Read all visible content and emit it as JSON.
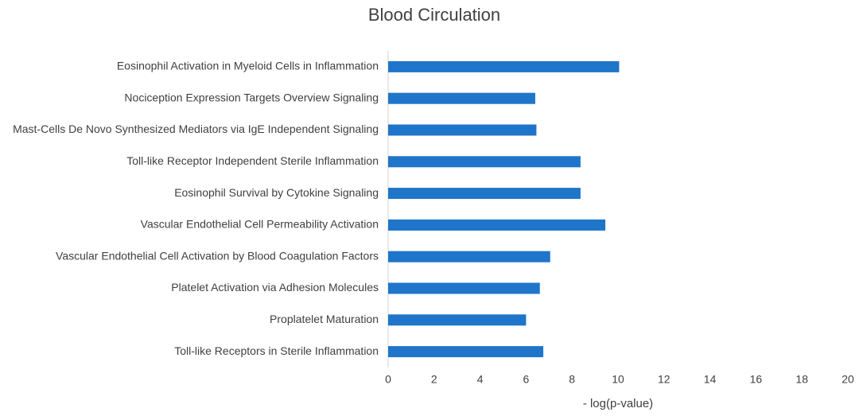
{
  "chart_data": {
    "type": "barh",
    "title": "Blood Circulation",
    "xlabel": "- log(p-value)",
    "categories": [
      "Eosinophil Activation in Myeloid Cells in Inflammation",
      "Nociception Expression Targets Overview Signaling",
      "Mast-Cells De Novo Synthesized Mediators via IgE Independent Signaling",
      "Toll-like Receptor Independent Sterile Inflammation",
      "Eosinophil Survival by Cytokine Signaling",
      "Vascular Endothelial Cell Permeability Activation",
      "Vascular Endothelial Cell Activation by Blood Coagulation Factors",
      "Platelet Activation via Adhesion Molecules",
      "Proplatelet Maturation",
      "Toll-like Receptors in Sterile Inflammation"
    ],
    "values": [
      10.05,
      6.4,
      6.45,
      8.37,
      8.37,
      9.45,
      7.05,
      6.6,
      6.0,
      6.75
    ],
    "color": "#1f75c9",
    "xlim": [
      0,
      20
    ],
    "xticks": [
      0,
      2,
      4,
      6,
      8,
      10,
      12,
      14,
      16,
      18,
      20
    ]
  }
}
